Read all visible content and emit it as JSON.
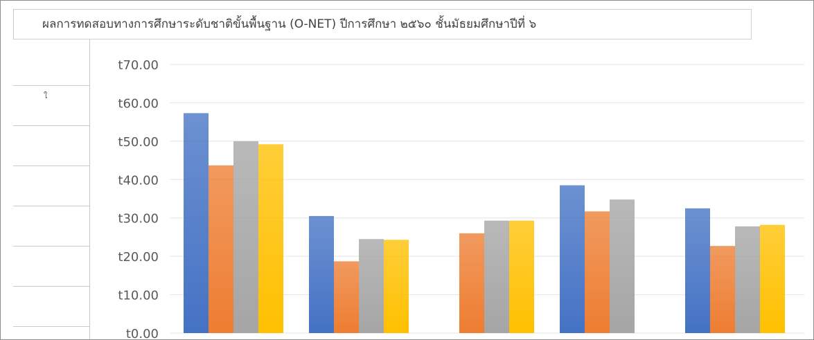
{
  "chart_data": {
    "type": "bar",
    "title": "ผลการทดสอบทางการศึกษาระดับชาติขั้นพื้นฐาน (O-NET) ปีการศึกษา ๒๕๖๐ ชั้นมัธยมศึกษาปีที่ ๖",
    "y_tick_labels": [
      "t0.00",
      "t10.00",
      "t20.00",
      "t30.00",
      "t40.00",
      "t50.00",
      "t60.00",
      "t70.00"
    ],
    "ylim": [
      0,
      70
    ],
    "grid": true,
    "groups": 5,
    "series": [
      {
        "color": "#4472c4",
        "values": [
          57.3,
          30.5,
          null,
          38.5,
          32.5
        ]
      },
      {
        "color": "#ed7d31",
        "values": [
          43.7,
          18.7,
          26.0,
          31.7,
          22.7
        ]
      },
      {
        "color": "#a5a5a5",
        "values": [
          50.0,
          24.5,
          29.3,
          34.8,
          27.8
        ]
      },
      {
        "color": "#ffc000",
        "values": [
          49.2,
          24.3,
          29.3,
          null,
          28.2
        ]
      }
    ]
  },
  "side_glyph": "ใ"
}
